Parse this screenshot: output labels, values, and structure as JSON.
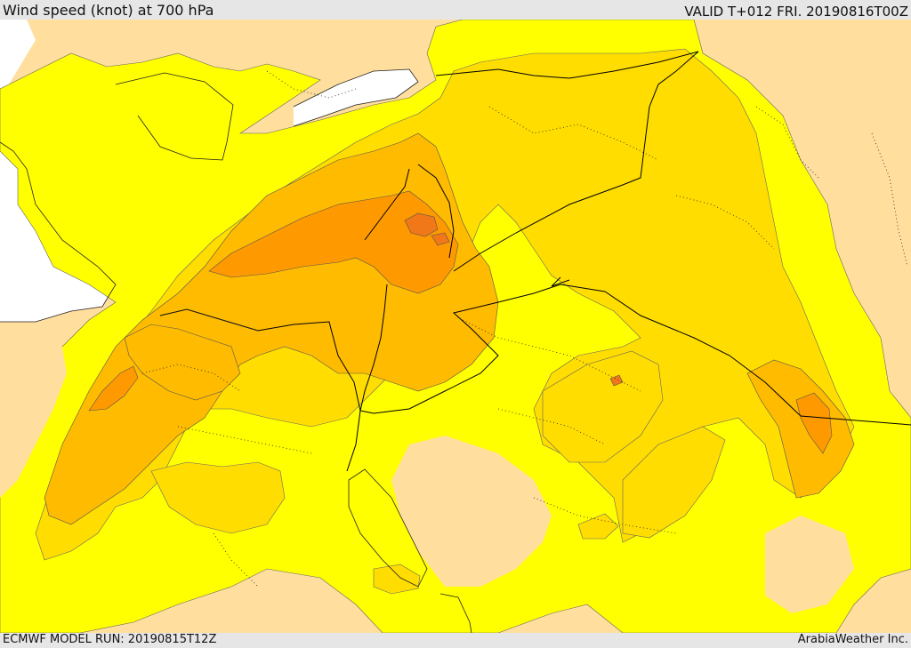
{
  "header": {
    "title": "Wind speed (knot) at 700 hPa",
    "valid": "VALID T+012 FRI. 20190816T00Z"
  },
  "footer": {
    "model_run": "ECMWF MODEL RUN: 20190815T12Z",
    "credit": "ArabiaWeather Inc."
  },
  "map": {
    "field": "wind speed at 700 hPa",
    "colors": {
      "land_low": "#ffde9e",
      "sea": "#ffffff",
      "band_1": "#ffff00",
      "band_2": "#ffdd00",
      "band_3": "#ffbb00",
      "band_4": "#ff9900",
      "band_5": "#f07818",
      "border": "#000000",
      "contour": "#555555"
    }
  }
}
